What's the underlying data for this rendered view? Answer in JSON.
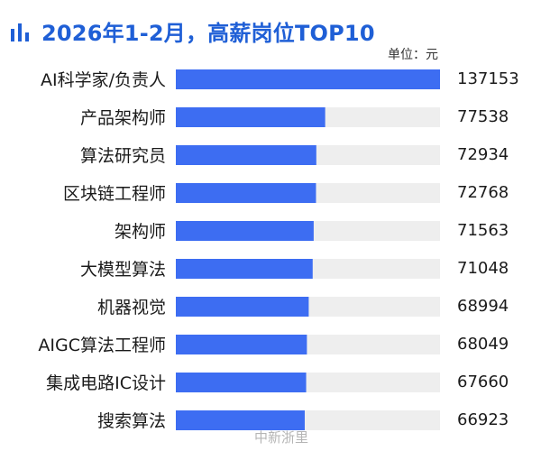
{
  "header": {
    "icon": "bar-chart-icon",
    "title": "2026年1-2月，高薪岗位TOP10",
    "unit_label": "单位：元"
  },
  "watermark": {
    "text": "中新浙里"
  },
  "colors": {
    "accent": "#1f5fd6",
    "bar": "#3d6df2",
    "track": "#eeeeee",
    "text": "#1b1b1b"
  },
  "chart_data": {
    "type": "bar",
    "orientation": "horizontal",
    "title": "2026年1-2月，高薪岗位TOP10",
    "unit": "单位：元",
    "categories": [
      "AI科学家/负责人",
      "产品架构师",
      "算法研究员",
      "区块链工程师",
      "架构师",
      "大模型算法",
      "机器视觉",
      "AIGC算法工程师",
      "集成电路IC设计",
      "搜索算法"
    ],
    "values": [
      137153,
      77538,
      72934,
      72768,
      71563,
      71048,
      68994,
      68049,
      67660,
      66923
    ],
    "xlim": [
      0,
      137153
    ],
    "grid": false,
    "legend": "none"
  }
}
